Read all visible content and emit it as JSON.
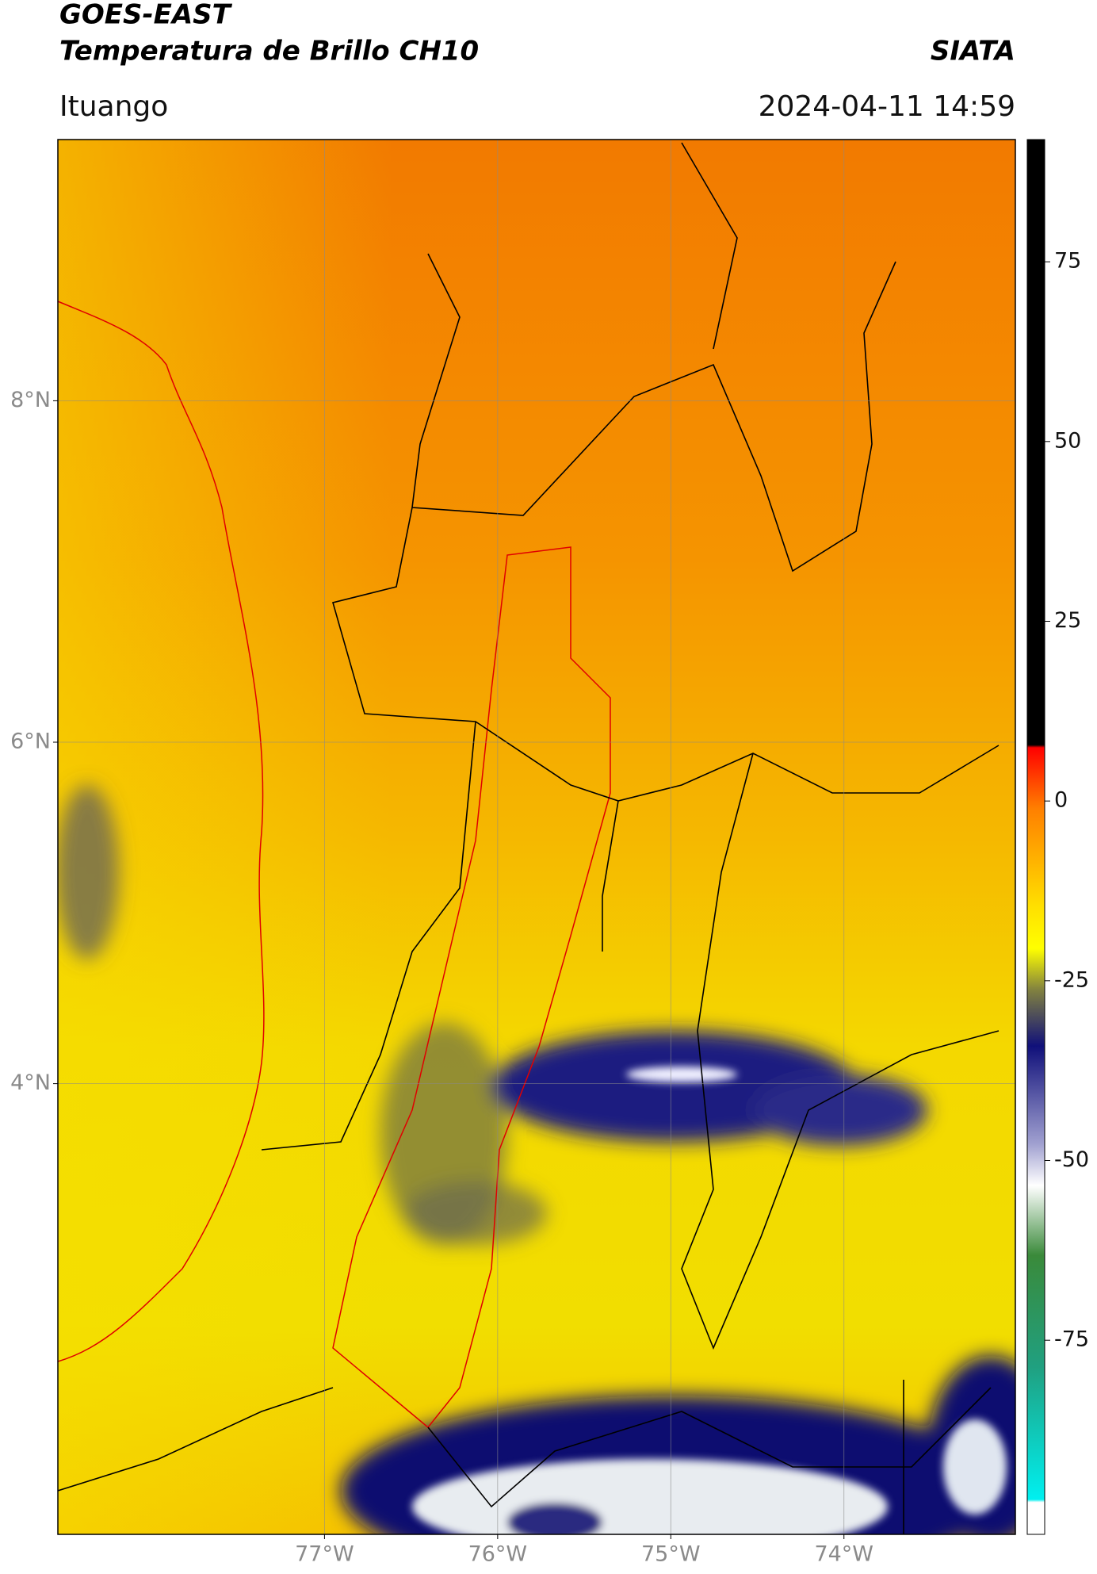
{
  "header": {
    "title": "GOES-EAST",
    "product": "Temperatura de Brillo CH10",
    "source": "SIATA",
    "region": "Ituango",
    "datetime": "2024-04-11 14:59"
  },
  "map": {
    "xlim": [
      -78.54,
      -73.01
    ],
    "ylim": [
      1.36,
      9.53
    ],
    "xticks": [
      {
        "value": -77,
        "label": "77°W"
      },
      {
        "value": -76,
        "label": "76°W"
      },
      {
        "value": -75,
        "label": "75°W"
      },
      {
        "value": -74,
        "label": "74°W"
      }
    ],
    "yticks": [
      {
        "value": 8,
        "label": "8°N"
      },
      {
        "value": 6,
        "label": "6°N"
      },
      {
        "value": 4,
        "label": "4°N"
      }
    ],
    "grid": true
  },
  "colorbar": {
    "lim": [
      -102,
      92
    ],
    "ticks": [
      75,
      50,
      25,
      0,
      -25,
      -50,
      -75
    ]
  }
}
